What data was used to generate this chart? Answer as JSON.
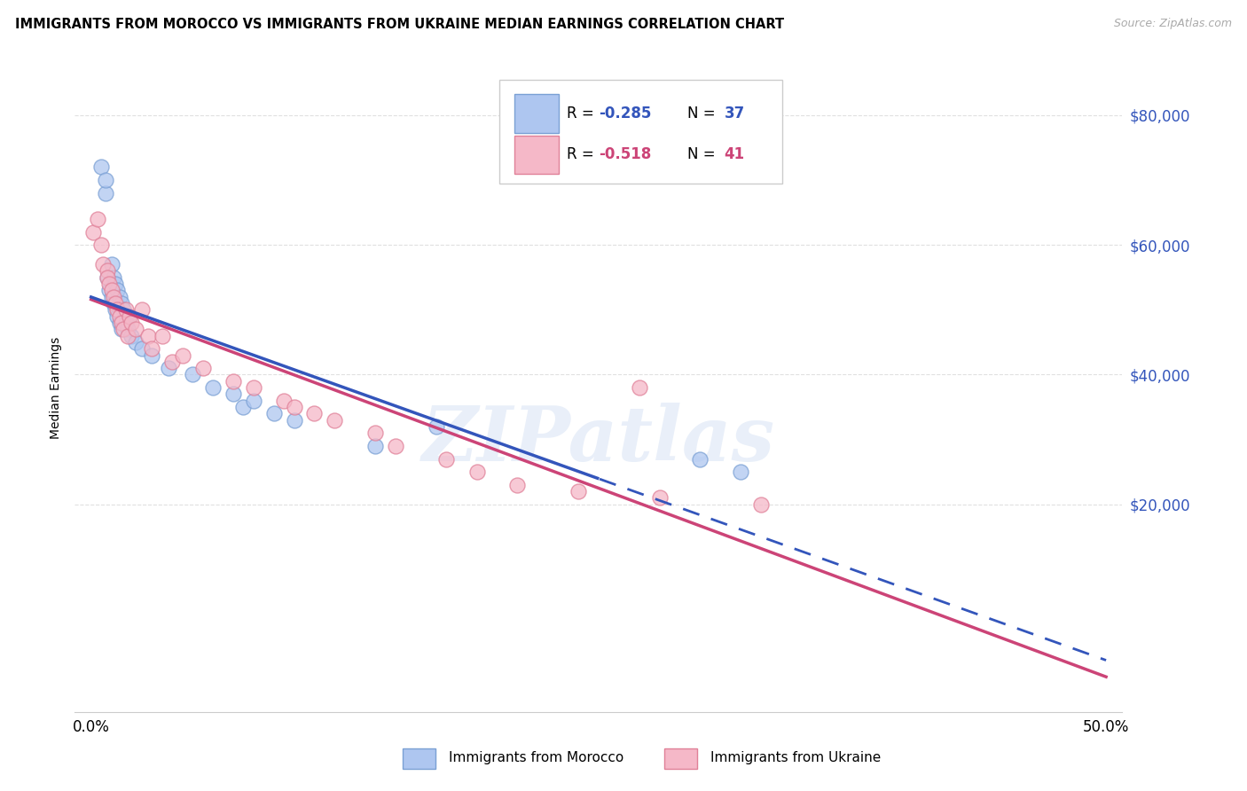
{
  "title": "IMMIGRANTS FROM MOROCCO VS IMMIGRANTS FROM UKRAINE MEDIAN EARNINGS CORRELATION CHART",
  "source": "Source: ZipAtlas.com",
  "ylabel": "Median Earnings",
  "yticks": [
    20000,
    40000,
    60000,
    80000
  ],
  "ytick_labels": [
    "$20,000",
    "$40,000",
    "$60,000",
    "$80,000"
  ],
  "xtick_positions": [
    0.0,
    0.1,
    0.2,
    0.3,
    0.4,
    0.5
  ],
  "xtick_labels": [
    "0.0%",
    "",
    "",
    "",
    "",
    "50.0%"
  ],
  "xlim_low": -0.008,
  "xlim_high": 0.508,
  "ylim_low": -12000,
  "ylim_high": 88000,
  "morocco_color": "#aec6f0",
  "ukraine_color": "#f5b8c8",
  "morocco_edge": "#7aa0d4",
  "ukraine_edge": "#e08098",
  "regression_blue": "#3355bb",
  "regression_pink": "#cc4477",
  "watermark": "ZIPatlas",
  "background_color": "#ffffff",
  "grid_color": "#e0e0e0",
  "morocco_label": "Immigrants from Morocco",
  "ukraine_label": "Immigrants from Ukraine",
  "R_morocco": "-0.285",
  "N_morocco": "37",
  "R_ukraine": "-0.518",
  "N_ukraine": "41",
  "blue_text_color": "#3355bb",
  "pink_text_color": "#cc4477",
  "morocco_x": [
    0.005,
    0.007,
    0.007,
    0.008,
    0.009,
    0.01,
    0.01,
    0.011,
    0.011,
    0.012,
    0.012,
    0.013,
    0.013,
    0.014,
    0.014,
    0.015,
    0.015,
    0.016,
    0.017,
    0.018,
    0.019,
    0.02,
    0.022,
    0.025,
    0.03,
    0.038,
    0.05,
    0.06,
    0.07,
    0.075,
    0.08,
    0.09,
    0.1,
    0.14,
    0.17,
    0.3,
    0.32
  ],
  "morocco_y": [
    72000,
    68000,
    70000,
    55000,
    53000,
    52000,
    57000,
    51000,
    55000,
    50000,
    54000,
    49000,
    53000,
    48000,
    52000,
    47000,
    51000,
    50000,
    48000,
    47000,
    49000,
    46000,
    45000,
    44000,
    43000,
    41000,
    40000,
    38000,
    37000,
    35000,
    36000,
    34000,
    33000,
    29000,
    32000,
    27000,
    25000
  ],
  "ukraine_x": [
    0.001,
    0.003,
    0.005,
    0.006,
    0.008,
    0.008,
    0.009,
    0.01,
    0.011,
    0.012,
    0.013,
    0.014,
    0.015,
    0.016,
    0.017,
    0.018,
    0.019,
    0.02,
    0.022,
    0.025,
    0.028,
    0.03,
    0.035,
    0.04,
    0.045,
    0.055,
    0.07,
    0.08,
    0.095,
    0.1,
    0.11,
    0.12,
    0.14,
    0.15,
    0.175,
    0.19,
    0.21,
    0.24,
    0.28,
    0.33,
    0.27
  ],
  "ukraine_y": [
    62000,
    64000,
    60000,
    57000,
    56000,
    55000,
    54000,
    53000,
    52000,
    51000,
    50000,
    49000,
    48000,
    47000,
    50000,
    46000,
    49000,
    48000,
    47000,
    50000,
    46000,
    44000,
    46000,
    42000,
    43000,
    41000,
    39000,
    38000,
    36000,
    35000,
    34000,
    33000,
    31000,
    29000,
    27000,
    25000,
    23000,
    22000,
    21000,
    20000,
    38000
  ]
}
